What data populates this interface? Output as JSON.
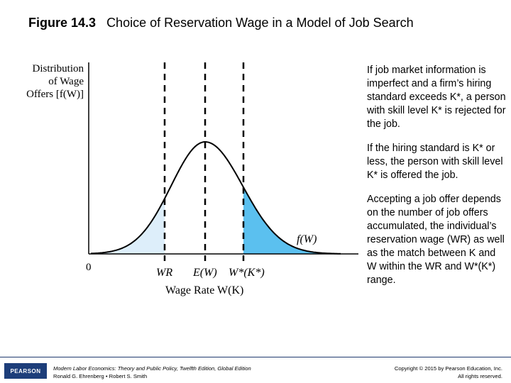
{
  "title": {
    "figure_number": "Figure 14.3",
    "text": "Choice of Reservation Wage in a Model of Job Search"
  },
  "diagram": {
    "y_axis_label_lines": [
      "Distribution",
      "of Wage",
      "Offers [f(W)]"
    ],
    "origin_label": "0",
    "curve_label": "f(W)",
    "x_labels": {
      "wr": "WR",
      "ew": "E(W)",
      "wstar": "W*(K*)"
    },
    "x_axis_title": "Wage Rate W(K)",
    "colors": {
      "left_tail_fill": "#ddeefa",
      "right_tail_fill": "#5bc0ef",
      "curve": "#000000"
    }
  },
  "side_text": {
    "p1": "If job market information is imperfect and a firm’s hiring standard exceeds K*, a person with skill level K* is rejected for the job.",
    "p2": "If the hiring standard is K* or less, the person with skill level K* is offered the job.",
    "p3": "Accepting a job offer depends on the number of job offers accumulated, the individual’s reservation wage (WR) as well as the match between K and W within the WR and W*(K*) range."
  },
  "footer": {
    "logo": "PEARSON",
    "book_line1": "Modern Labor Economics: Theory and Public Policy, Twelfth Edition, Global Edition",
    "book_line2": "Ronald G. Ehrenberg • Robert S. Smith",
    "copyright_line1": "Copyright © 2015 by Pearson Education, Inc.",
    "copyright_line2": "All rights reserved."
  }
}
